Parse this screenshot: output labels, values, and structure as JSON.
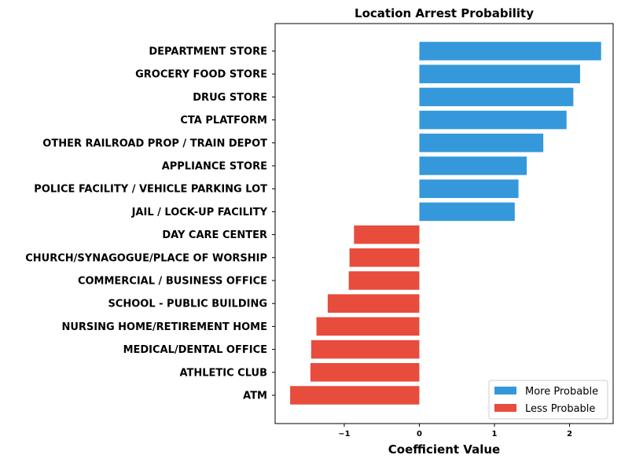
{
  "chart_data": {
    "type": "bar",
    "orientation": "horizontal",
    "title": "Location Arrest Probability",
    "xlabel": "Coefficient Value",
    "ylabel": "",
    "xlim": [
      -1.92,
      2.58
    ],
    "xticks": [
      -1,
      0,
      1,
      2
    ],
    "xtick_labels": [
      "−1",
      "0",
      "1",
      "2"
    ],
    "grid": false,
    "legend_position": "lower-right",
    "legend": [
      {
        "label": "More Probable",
        "color": "#3498db"
      },
      {
        "label": "Less Probable",
        "color": "#e74c3c"
      }
    ],
    "categories": [
      "DEPARTMENT STORE",
      "GROCERY FOOD STORE",
      "DRUG STORE",
      "CTA PLATFORM",
      "OTHER RAILROAD PROP / TRAIN DEPOT",
      "APPLIANCE STORE",
      "POLICE FACILITY / VEHICLE PARKING LOT",
      "JAIL / LOCK-UP FACILITY",
      "DAY CARE CENTER",
      "CHURCH/SYNAGOGUE/PLACE OF WORSHIP",
      "COMMERCIAL / BUSINESS OFFICE",
      "SCHOOL - PUBLIC BUILDING",
      "NURSING HOME/RETIREMENT HOME",
      "MEDICAL/DENTAL OFFICE",
      "ATHLETIC CLUB",
      "ATM"
    ],
    "values": [
      2.42,
      2.14,
      2.05,
      1.96,
      1.65,
      1.43,
      1.32,
      1.27,
      -0.87,
      -0.93,
      -0.94,
      -1.22,
      -1.37,
      -1.44,
      -1.45,
      -1.72
    ]
  }
}
